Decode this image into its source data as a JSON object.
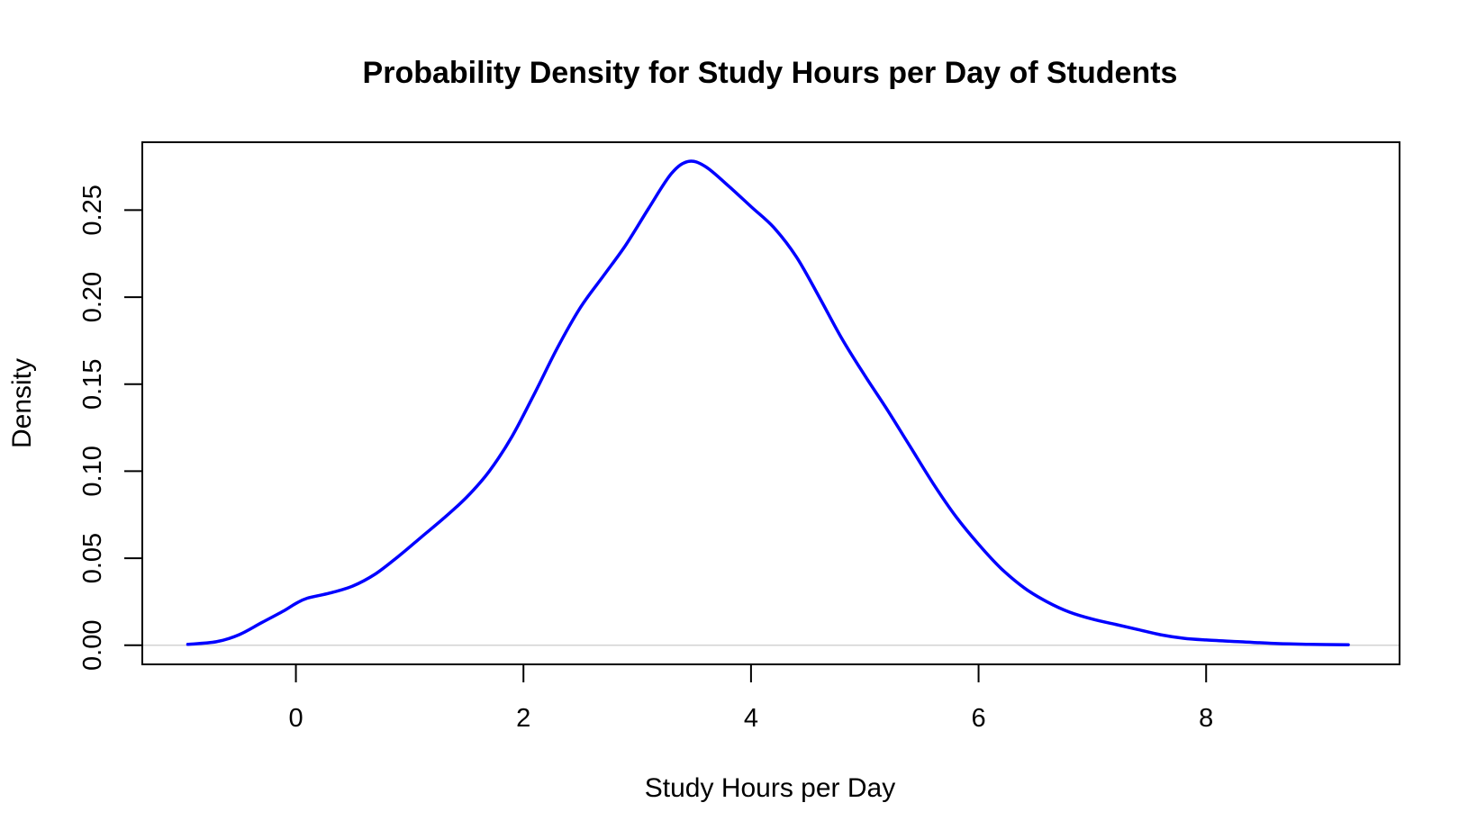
{
  "chart_data": {
    "type": "line",
    "title": "Probability Density for Study Hours per Day of Students",
    "xlabel": "Study Hours per Day",
    "ylabel": "Density",
    "xlim": [
      -1.35,
      9.7
    ],
    "ylim": [
      -0.011,
      0.289
    ],
    "xticks": [
      0,
      2,
      4,
      6,
      8
    ],
    "xtick_labels": [
      "0",
      "2",
      "4",
      "6",
      "8"
    ],
    "yticks": [
      0,
      0.05,
      0.1,
      0.15,
      0.2,
      0.25
    ],
    "ytick_labels": [
      "0.00",
      "0.05",
      "0.10",
      "0.15",
      "0.20",
      "0.25"
    ],
    "baseline": 0,
    "baseline_color": "#d3d3d3",
    "line_color": "#0000ff",
    "grid": false,
    "series": [
      {
        "x": [
          -0.95,
          -0.7,
          -0.5,
          -0.3,
          -0.1,
          0.0,
          0.1,
          0.3,
          0.5,
          0.7,
          0.9,
          1.1,
          1.3,
          1.5,
          1.7,
          1.9,
          2.1,
          2.3,
          2.5,
          2.7,
          2.9,
          3.1,
          3.3,
          3.45,
          3.6,
          3.8,
          4.0,
          4.2,
          4.4,
          4.6,
          4.8,
          5.0,
          5.2,
          5.4,
          5.6,
          5.8,
          6.0,
          6.2,
          6.4,
          6.6,
          6.8,
          7.0,
          7.2,
          7.4,
          7.6,
          7.8,
          8.0,
          8.3,
          8.6,
          8.9,
          9.25
        ],
        "y": [
          0.0005,
          0.002,
          0.006,
          0.013,
          0.02,
          0.024,
          0.027,
          0.03,
          0.034,
          0.041,
          0.051,
          0.062,
          0.073,
          0.085,
          0.1,
          0.12,
          0.145,
          0.171,
          0.194,
          0.212,
          0.23,
          0.251,
          0.271,
          0.278,
          0.275,
          0.264,
          0.252,
          0.24,
          0.223,
          0.2,
          0.176,
          0.155,
          0.135,
          0.114,
          0.093,
          0.074,
          0.058,
          0.044,
          0.033,
          0.025,
          0.019,
          0.015,
          0.012,
          0.009,
          0.006,
          0.004,
          0.003,
          0.002,
          0.001,
          0.0005,
          0.0003
        ]
      }
    ]
  }
}
